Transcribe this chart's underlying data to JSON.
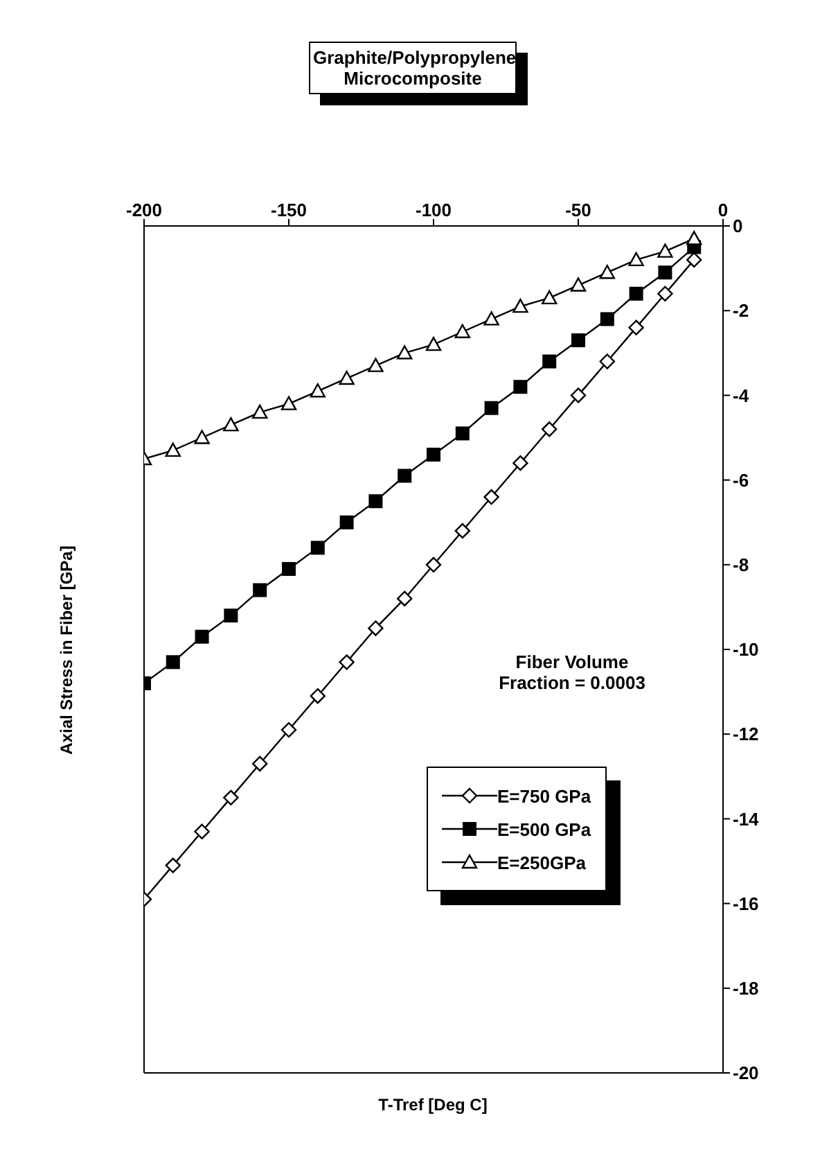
{
  "chart_data": {
    "type": "line",
    "title": "Graphite/Polypropylene\nMicrocomposite",
    "xlabel": "T-Tref [Deg C]",
    "ylabel": "Axial Stress in Fiber [GPa]",
    "annotations": [
      "Fiber Volume\nFraction = 0.0003"
    ],
    "x": [
      -200,
      -190,
      -180,
      -170,
      -160,
      -150,
      -140,
      -130,
      -120,
      -110,
      -100,
      -90,
      -80,
      -70,
      -60,
      -50,
      -40,
      -30,
      -20,
      -10
    ],
    "series": [
      {
        "name": "E=750 GPa",
        "color": "#000000",
        "marker": "diamond",
        "values": [
          -15.9,
          -15.1,
          -14.3,
          -13.5,
          -12.7,
          -11.9,
          -11.1,
          -10.3,
          -9.5,
          -8.8,
          -8.0,
          -7.2,
          -6.4,
          -5.6,
          -4.8,
          -4.0,
          -3.2,
          -2.4,
          -1.6,
          -0.8
        ]
      },
      {
        "name": "E=500 GPa",
        "color": "#000000",
        "marker": "square",
        "values": [
          -10.8,
          -10.3,
          -9.7,
          -9.2,
          -8.6,
          -8.1,
          -7.6,
          -7.0,
          -6.5,
          -5.9,
          -5.4,
          -4.9,
          -4.3,
          -3.8,
          -3.2,
          -2.7,
          -2.2,
          -1.6,
          -1.1,
          -0.5
        ]
      },
      {
        "name": "E=250GPa",
        "color": "#000000",
        "marker": "triangle",
        "values": [
          -5.5,
          -5.3,
          -5.0,
          -4.7,
          -4.4,
          -4.2,
          -3.9,
          -3.6,
          -3.3,
          -3.0,
          -2.8,
          -2.5,
          -2.2,
          -1.9,
          -1.7,
          -1.4,
          -1.1,
          -0.8,
          -0.6,
          -0.3
        ]
      }
    ],
    "xlim": [
      -200,
      0
    ],
    "xticks": [
      -200,
      -150,
      -100,
      -50,
      0
    ],
    "ylim": [
      -20,
      0
    ],
    "yticks": [
      0,
      -2,
      -4,
      -6,
      -8,
      -10,
      -12,
      -14,
      -16,
      -18,
      -20
    ],
    "grid": false,
    "legend": "bottom right",
    "line_style": "solid"
  }
}
